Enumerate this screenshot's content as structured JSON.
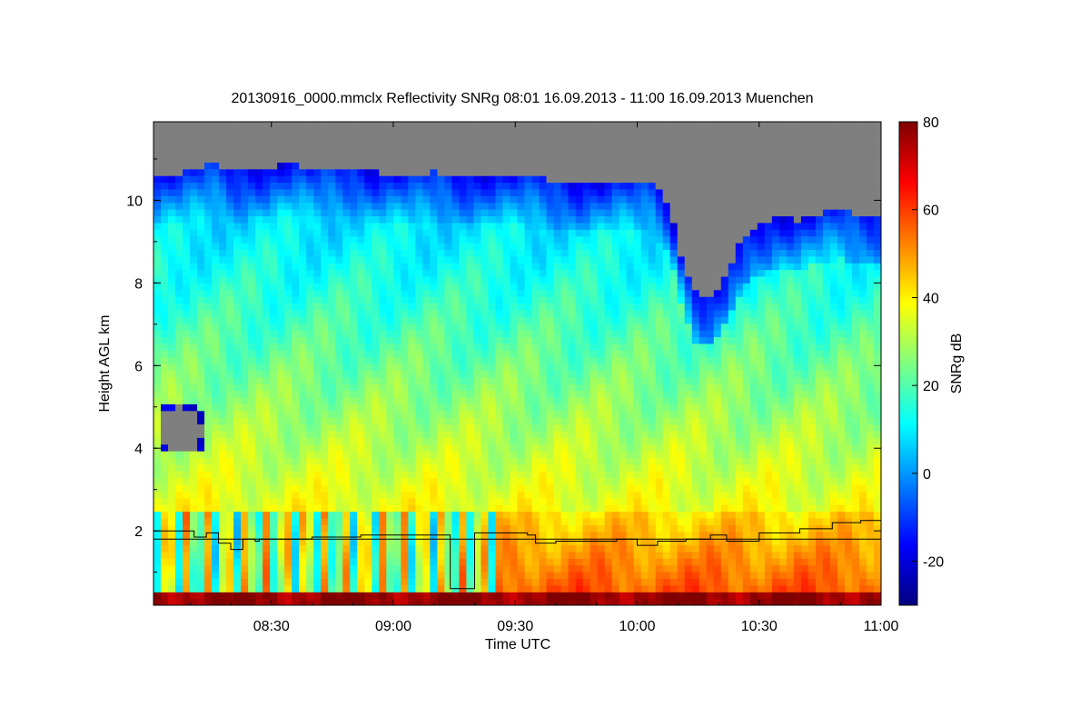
{
  "chart_data": {
    "type": "heatmap",
    "title": "20130916_0000.mmclx Reflectivity SNRg   08:01 16.09.2013 - 11:00 16.09.2013 Muenchen",
    "xlabel": "Time UTC",
    "ylabel": "Height AGL km",
    "colorbar_label": "SNRg dB",
    "x_range_minutes_utc": [
      481,
      660
    ],
    "y_range_km": [
      0.2,
      11.9
    ],
    "x_ticks": [
      {
        "label": "08:30",
        "minute": 510
      },
      {
        "label": "09:00",
        "minute": 540
      },
      {
        "label": "09:30",
        "minute": 570
      },
      {
        "label": "10:00",
        "minute": 600
      },
      {
        "label": "10:30",
        "minute": 630
      },
      {
        "label": "11:00",
        "minute": 660
      }
    ],
    "y_ticks": [
      {
        "label": "2",
        "value": 2
      },
      {
        "label": "4",
        "value": 4
      },
      {
        "label": "6",
        "value": 6
      },
      {
        "label": "8",
        "value": 8
      },
      {
        "label": "10",
        "value": 10
      }
    ],
    "colorbar_range_db": [
      -30,
      80
    ],
    "colorbar_ticks": [
      {
        "label": "-20",
        "value": -20
      },
      {
        "label": "0",
        "value": 0
      },
      {
        "label": "20",
        "value": 20
      },
      {
        "label": "40",
        "value": 40
      },
      {
        "label": "60",
        "value": 60
      },
      {
        "label": "80",
        "value": 80
      }
    ],
    "no_signal_color": "#7f7f7f",
    "cloud_top_profile_km": [
      [
        481,
        10.6
      ],
      [
        485,
        10.65
      ],
      [
        490,
        10.7
      ],
      [
        495,
        10.9
      ],
      [
        500,
        10.7
      ],
      [
        505,
        10.75
      ],
      [
        510,
        10.8
      ],
      [
        515,
        10.9
      ],
      [
        520,
        10.7
      ],
      [
        525,
        10.8
      ],
      [
        530,
        10.85
      ],
      [
        535,
        10.7
      ],
      [
        540,
        10.65
      ],
      [
        545,
        10.6
      ],
      [
        550,
        10.7
      ],
      [
        555,
        10.6
      ],
      [
        560,
        10.6
      ],
      [
        565,
        10.65
      ],
      [
        570,
        10.6
      ],
      [
        575,
        10.55
      ],
      [
        580,
        10.5
      ],
      [
        585,
        10.4
      ],
      [
        590,
        10.45
      ],
      [
        595,
        10.5
      ],
      [
        600,
        10.45
      ],
      [
        604,
        10.4
      ],
      [
        608,
        9.9
      ],
      [
        611,
        8.6
      ],
      [
        614,
        7.8
      ],
      [
        617,
        7.6
      ],
      [
        620,
        7.9
      ],
      [
        623,
        8.5
      ],
      [
        626,
        9.1
      ],
      [
        630,
        9.4
      ],
      [
        635,
        9.6
      ],
      [
        640,
        9.5
      ],
      [
        645,
        9.7
      ],
      [
        650,
        9.8
      ],
      [
        655,
        9.6
      ],
      [
        660,
        9.7
      ]
    ],
    "mixing_layer_km": [
      [
        481,
        2.0
      ],
      [
        490,
        2.0
      ],
      [
        491,
        1.85
      ],
      [
        494,
        1.95
      ],
      [
        497,
        1.7
      ],
      [
        500,
        1.55
      ],
      [
        503,
        1.8
      ],
      [
        506,
        1.75
      ],
      [
        507,
        1.8
      ],
      [
        520,
        1.85
      ],
      [
        532,
        1.9
      ],
      [
        553,
        1.9
      ],
      [
        554,
        0.6
      ],
      [
        559,
        0.6
      ],
      [
        560,
        1.95
      ],
      [
        573,
        1.9
      ],
      [
        575,
        1.7
      ],
      [
        580,
        1.75
      ],
      [
        590,
        1.75
      ],
      [
        595,
        1.8
      ],
      [
        600,
        1.65
      ],
      [
        605,
        1.75
      ],
      [
        612,
        1.8
      ],
      [
        618,
        1.9
      ],
      [
        622,
        1.75
      ],
      [
        630,
        1.95
      ],
      [
        640,
        2.05
      ],
      [
        648,
        2.2
      ],
      [
        655,
        2.25
      ],
      [
        660,
        2.2
      ]
    ],
    "reference_line_km": 1.8,
    "colormap": [
      "#00007f",
      "#0000ff",
      "#0080ff",
      "#00ffff",
      "#80ff80",
      "#ffff00",
      "#ff8000",
      "#ff0000",
      "#7f0000"
    ]
  }
}
